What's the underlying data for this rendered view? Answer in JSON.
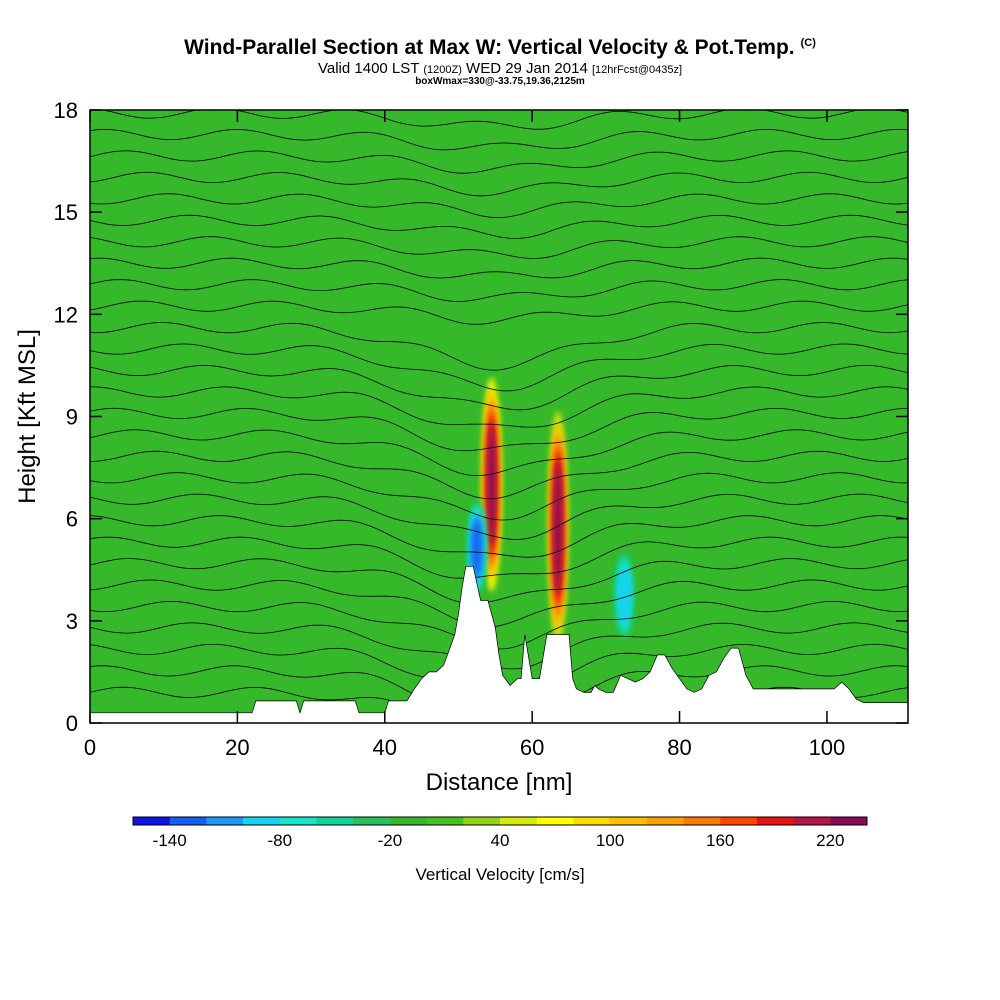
{
  "header": {
    "title": "Wind-Parallel Section at Max W: Vertical Velocity & Pot.Temp.",
    "copyright": "(C)",
    "valid_prefix": "Valid 1400 LST",
    "utc": "(1200Z)",
    "valid_date": "WED 29 Jan 2014",
    "forecast": "[12hrFcst@0435z]",
    "box_info": "boxWmax=330@-33.75,19.36,2125m"
  },
  "colors": {
    "background_field": "#35b82a",
    "terrain": "#ffffff",
    "contour": "#000000",
    "colorbar": [
      "#0a14e6",
      "#1460f0",
      "#1e96f5",
      "#14d2f0",
      "#14e6c8",
      "#14d296",
      "#28c25a",
      "#35b82a",
      "#46c21e",
      "#96d214",
      "#d7eb0a",
      "#ffff00",
      "#ffdc00",
      "#ffbe00",
      "#ffa000",
      "#ff7800",
      "#ff4600",
      "#e61414",
      "#b41446",
      "#8c0a5a"
    ]
  },
  "chart_data": {
    "type": "heatmap",
    "title": "Wind-Parallel Section at Max W: Vertical Velocity & Pot.Temp.",
    "xlabel": "Distance [nm]",
    "ylabel": "Height [Kft MSL]",
    "xlim": [
      0,
      111
    ],
    "ylim": [
      0,
      18
    ],
    "x_ticks": [
      0,
      20,
      40,
      60,
      80,
      100
    ],
    "y_ticks": [
      0,
      3,
      6,
      9,
      12,
      15,
      18
    ],
    "colorbar": {
      "label": "Vertical Velocity [cm/s]",
      "tick_values": [
        -140,
        -80,
        -20,
        40,
        100,
        160,
        220
      ],
      "tick_labels": [
        "-140",
        "-80",
        "-20",
        "40",
        "100",
        "160",
        "220"
      ],
      "min": -160,
      "max": 240,
      "step": 20
    },
    "features": [
      {
        "name": "updraft",
        "x": 54.5,
        "y_bottom": 4.0,
        "y_top": 10.0,
        "w": 240
      },
      {
        "name": "updraft",
        "x": 63.5,
        "y_bottom": 2.5,
        "y_top": 9.0,
        "w": 230
      },
      {
        "name": "downdraft",
        "x": 52.5,
        "y_bottom": 3.8,
        "y_top": 6.5,
        "w": -140
      },
      {
        "name": "downdraft",
        "x": 72.5,
        "y_bottom": 2.5,
        "y_top": 5.0,
        "w": -100
      }
    ],
    "terrain": {
      "x": [
        0,
        22,
        22.5,
        28,
        28.5,
        29,
        36,
        36.5,
        40,
        40.5,
        43,
        44,
        45,
        46,
        47,
        48,
        49,
        49.5,
        50,
        50.5,
        51,
        52,
        53,
        54,
        55,
        55.5,
        56,
        57,
        58,
        58.5,
        59,
        60,
        61,
        62,
        63,
        64,
        65,
        65.5,
        66,
        67,
        68,
        68.5,
        69,
        70,
        71,
        72,
        73,
        74,
        75,
        76,
        77,
        78,
        79,
        80,
        81,
        82,
        83,
        84,
        85,
        86,
        87,
        88,
        89,
        90,
        91,
        92,
        93,
        94,
        95,
        96,
        97,
        98,
        99,
        100,
        101,
        102,
        103,
        104,
        105,
        106,
        107,
        108,
        109,
        110,
        111
      ],
      "y": [
        0.3,
        0.3,
        0.65,
        0.65,
        0.3,
        0.65,
        0.65,
        0.3,
        0.3,
        0.65,
        0.65,
        1.0,
        1.3,
        1.5,
        1.5,
        1.7,
        2.3,
        2.6,
        3.2,
        4.0,
        4.6,
        4.6,
        3.6,
        3.6,
        2.8,
        2.0,
        1.4,
        1.1,
        1.3,
        1.3,
        2.6,
        1.3,
        1.3,
        2.6,
        2.6,
        2.6,
        2.6,
        1.3,
        1.0,
        0.9,
        0.9,
        1.1,
        1.0,
        0.9,
        0.9,
        1.4,
        1.3,
        1.2,
        1.3,
        1.5,
        2.0,
        2.0,
        1.6,
        1.3,
        1.0,
        0.9,
        1.0,
        1.4,
        1.5,
        1.9,
        2.2,
        2.2,
        1.4,
        1.0,
        1.0,
        1.0,
        1.0,
        1.0,
        1.0,
        1.0,
        1.0,
        1.0,
        1.0,
        1.0,
        1.0,
        1.2,
        1.0,
        0.7,
        0.6,
        0.6,
        0.6,
        0.6,
        0.6,
        0.6,
        0.6
      ]
    },
    "theta_contour_count": 28
  }
}
